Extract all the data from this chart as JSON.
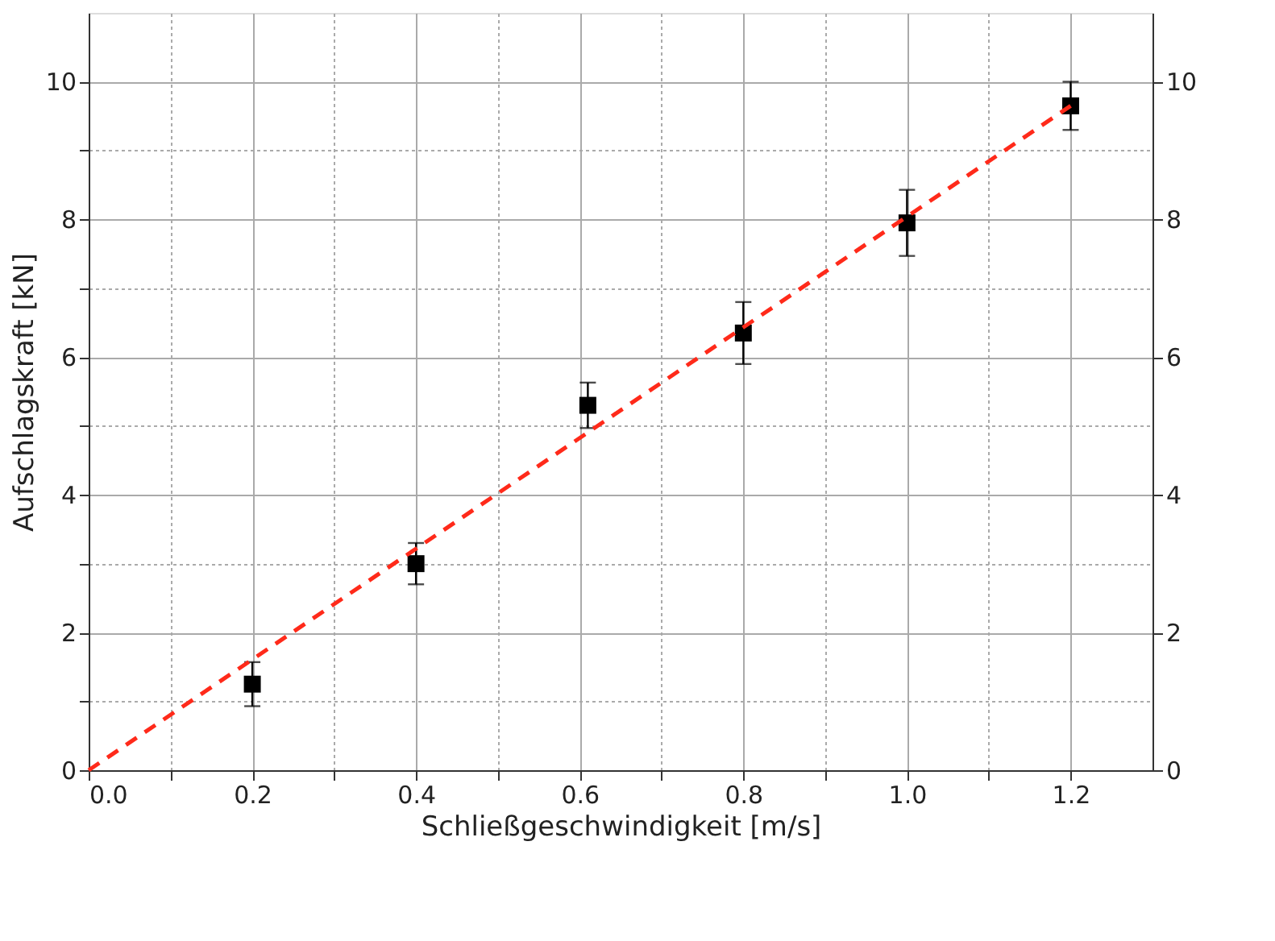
{
  "chart_data": {
    "type": "scatter",
    "xlabel": "Schließgeschwindigkeit [m/s]",
    "ylabel": "Aufschlagskraft [kN]",
    "xlim": [
      0,
      1.3
    ],
    "ylim": [
      0,
      11
    ],
    "y2lim": [
      0,
      11
    ],
    "xticks": [
      {
        "value": 0,
        "label": "0.0"
      },
      {
        "value": 0.1,
        "label": null
      },
      0.2,
      {
        "value": 0.3,
        "label": null
      },
      0.4,
      {
        "value": 0.5,
        "label": null
      },
      0.6,
      {
        "value": 0.7,
        "label": null
      },
      0.8,
      {
        "value": 0.9,
        "label": null
      },
      {
        "value": 1,
        "label": "1.0"
      },
      {
        "value": 1.1,
        "label": null
      },
      1.2
    ],
    "yticks": [
      0,
      {
        "value": 1,
        "label": null
      },
      2,
      {
        "value": 3,
        "label": null
      },
      4,
      {
        "value": 5,
        "label": null
      },
      6,
      {
        "value": 7,
        "label": null
      },
      8,
      {
        "value": 9,
        "label": null
      },
      10
    ],
    "y2ticks": [
      0,
      2,
      4,
      6,
      8,
      10
    ],
    "grid": true,
    "series": [
      {
        "color": "#000000",
        "marker": "square",
        "x": [
          0.2,
          0.4,
          0.61,
          0.8,
          1.0,
          1.2
        ],
        "values": [
          1.25,
          3.0,
          5.3,
          6.35,
          7.95,
          9.65
        ],
        "errors": [
          0.32,
          0.3,
          0.33,
          0.45,
          0.48,
          0.35
        ]
      },
      {
        "type": "line",
        "color": "#ff2a1a",
        "marker": "none",
        "line_style": "dashed",
        "axis": "y2",
        "x": [
          0,
          1.2
        ],
        "values": [
          0,
          9.65
        ]
      }
    ]
  }
}
